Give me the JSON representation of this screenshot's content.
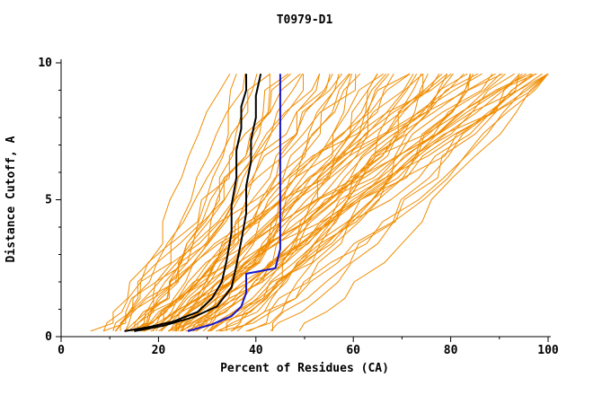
{
  "chart_data": {
    "type": "line",
    "title": "T0979-D1",
    "xlabel": "Percent of Residues (CA)",
    "ylabel": "Distance Cutoff, A",
    "xlim": [
      0,
      100
    ],
    "ylim": [
      0,
      10
    ],
    "grid": false,
    "legend": "none",
    "axes": {
      "x": {
        "major": [
          0,
          20,
          40,
          60,
          80,
          100
        ],
        "minor": [
          10,
          30,
          50,
          70,
          90
        ]
      },
      "y": {
        "major": [
          0,
          5,
          10
        ],
        "minor": [
          1,
          2,
          3,
          4,
          6,
          7,
          8,
          9
        ]
      }
    },
    "colors": {
      "ensemble": "#F08C00",
      "model_black": "#000000",
      "model_blue": "#1414CC",
      "axis": "#000000"
    },
    "series": [
      {
        "name": "model-black-1",
        "color": "#000000",
        "width": 2,
        "points": [
          [
            13,
            0.2
          ],
          [
            18,
            0.35
          ],
          [
            23,
            0.55
          ],
          [
            28,
            0.9
          ],
          [
            31,
            1.4
          ],
          [
            33,
            2.0
          ],
          [
            34,
            2.8
          ],
          [
            35,
            3.8
          ],
          [
            35,
            4.8
          ],
          [
            36,
            5.8
          ],
          [
            36,
            6.8
          ],
          [
            37,
            7.6
          ],
          [
            37,
            8.4
          ],
          [
            38,
            9.0
          ],
          [
            38,
            9.6
          ]
        ]
      },
      {
        "name": "model-black-2",
        "color": "#000000",
        "width": 2,
        "points": [
          [
            15,
            0.2
          ],
          [
            21,
            0.4
          ],
          [
            27,
            0.7
          ],
          [
            32,
            1.1
          ],
          [
            35,
            1.8
          ],
          [
            36,
            2.6
          ],
          [
            37,
            3.5
          ],
          [
            38,
            4.5
          ],
          [
            38,
            5.5
          ],
          [
            39,
            6.4
          ],
          [
            39,
            7.2
          ],
          [
            40,
            8.0
          ],
          [
            40,
            8.8
          ],
          [
            41,
            9.6
          ]
        ]
      },
      {
        "name": "model-blue",
        "color": "#1414CC",
        "width": 2,
        "points": [
          [
            26,
            0.2
          ],
          [
            31,
            0.45
          ],
          [
            35,
            0.75
          ],
          [
            37,
            1.1
          ],
          [
            38,
            1.6
          ],
          [
            38,
            2.3
          ],
          [
            44,
            2.5
          ],
          [
            45,
            3.2
          ],
          [
            45,
            9.6
          ]
        ]
      }
    ],
    "ensemble": {
      "count": 70,
      "jitter": 1.8,
      "y_top": 9.6,
      "y_levels": [
        0.2,
        0.5,
        0.9,
        1.4,
        2.0,
        2.7,
        3.4,
        4.2,
        5.0,
        5.8,
        6.6,
        7.4,
        8.2,
        9.0,
        9.6
      ],
      "curves": [
        [
          6,
          34,
          0.7
        ],
        [
          8,
          38,
          0.8
        ],
        [
          9,
          42,
          0.9
        ],
        [
          10,
          45,
          0.7
        ],
        [
          11,
          48,
          1.0
        ],
        [
          12,
          50,
          0.8
        ],
        [
          13,
          52,
          0.9
        ],
        [
          14,
          55,
          0.7
        ],
        [
          15,
          58,
          1.1
        ],
        [
          16,
          60,
          0.8
        ],
        [
          17,
          62,
          0.9
        ],
        [
          18,
          65,
          0.7
        ],
        [
          19,
          68,
          1.0
        ],
        [
          20,
          70,
          0.8
        ],
        [
          21,
          72,
          0.9
        ],
        [
          22,
          75,
          0.7
        ],
        [
          23,
          78,
          1.0
        ],
        [
          24,
          80,
          0.8
        ],
        [
          25,
          82,
          0.9
        ],
        [
          26,
          85,
          0.7
        ],
        [
          27,
          88,
          1.0
        ],
        [
          28,
          90,
          0.8
        ],
        [
          29,
          92,
          0.9
        ],
        [
          30,
          95,
          0.7
        ],
        [
          31,
          98,
          1.0
        ],
        [
          32,
          100,
          0.8
        ],
        [
          12,
          40,
          0.6
        ],
        [
          14,
          44,
          0.65
        ],
        [
          16,
          48,
          0.6
        ],
        [
          18,
          52,
          0.65
        ],
        [
          20,
          56,
          0.6
        ],
        [
          22,
          60,
          0.65
        ],
        [
          24,
          64,
          0.6
        ],
        [
          26,
          68,
          0.65
        ],
        [
          28,
          72,
          0.6
        ],
        [
          30,
          76,
          0.65
        ],
        [
          10,
          80,
          1.3
        ],
        [
          12,
          85,
          1.2
        ],
        [
          14,
          90,
          1.3
        ],
        [
          16,
          95,
          1.2
        ],
        [
          18,
          100,
          1.3
        ],
        [
          20,
          100,
          1.1
        ],
        [
          22,
          96,
          1.2
        ],
        [
          24,
          99,
          1.1
        ],
        [
          15,
          70,
          1.0
        ],
        [
          17,
          74,
          0.95
        ],
        [
          19,
          78,
          1.05
        ],
        [
          21,
          82,
          0.95
        ],
        [
          23,
          86,
          1.05
        ],
        [
          25,
          90,
          0.95
        ],
        [
          27,
          94,
          1.05
        ],
        [
          29,
          98,
          0.95
        ],
        [
          13,
          36,
          0.55
        ],
        [
          35,
          75,
          0.8
        ],
        [
          38,
          85,
          0.9
        ],
        [
          40,
          95,
          0.85
        ],
        [
          42,
          100,
          0.9
        ],
        [
          45,
          100,
          0.8
        ],
        [
          33,
          65,
          0.7
        ],
        [
          36,
          80,
          0.75
        ],
        [
          8,
          46,
          0.85
        ],
        [
          9,
          55,
          0.95
        ],
        [
          11,
          62,
          1.05
        ],
        [
          13,
          70,
          0.9
        ],
        [
          15,
          78,
          1.0
        ],
        [
          17,
          84,
          0.9
        ],
        [
          19,
          90,
          1.0
        ],
        [
          21,
          94,
          0.9
        ],
        [
          23,
          100,
          1.0
        ],
        [
          25,
          58,
          0.7
        ]
      ]
    }
  }
}
